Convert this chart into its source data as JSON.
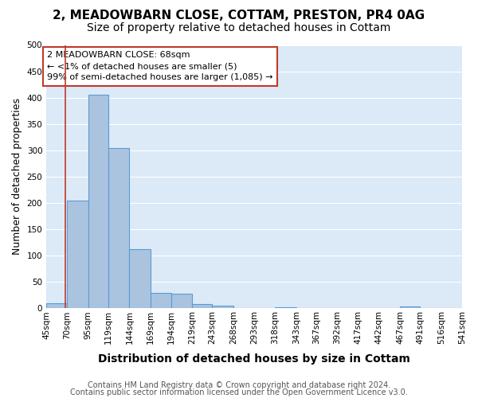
{
  "title_line1": "2, MEADOWBARN CLOSE, COTTAM, PRESTON, PR4 0AG",
  "title_line2": "Size of property relative to detached houses in Cottam",
  "xlabel": "Distribution of detached houses by size in Cottam",
  "ylabel": "Number of detached properties",
  "bar_edges": [
    45,
    70,
    95,
    119,
    144,
    169,
    194,
    219,
    243,
    268,
    293,
    318,
    343,
    367,
    392,
    417,
    442,
    467,
    491,
    516,
    541
  ],
  "bar_heights": [
    10,
    205,
    405,
    305,
    113,
    30,
    28,
    9,
    5,
    0,
    0,
    3,
    0,
    0,
    0,
    0,
    0,
    4,
    0,
    0
  ],
  "bar_color": "#aac4e0",
  "bar_edge_color": "#5b9bd5",
  "vline_x": 68,
  "vline_color": "#c0392b",
  "annotation_text": "2 MEADOWBARN CLOSE: 68sqm\n← <1% of detached houses are smaller (5)\n99% of semi-detached houses are larger (1,085) →",
  "annotation_box_color": "#ffffff",
  "annotation_box_edge_color": "#c0392b",
  "ylim": [
    0,
    500
  ],
  "yticks": [
    0,
    50,
    100,
    150,
    200,
    250,
    300,
    350,
    400,
    450,
    500
  ],
  "xtick_labels": [
    "45sqm",
    "70sqm",
    "95sqm",
    "119sqm",
    "144sqm",
    "169sqm",
    "194sqm",
    "219sqm",
    "243sqm",
    "268sqm",
    "293sqm",
    "318sqm",
    "343sqm",
    "367sqm",
    "392sqm",
    "417sqm",
    "442sqm",
    "467sqm",
    "491sqm",
    "516sqm",
    "541sqm"
  ],
  "bg_color": "#dce9f7",
  "footer_line1": "Contains HM Land Registry data © Crown copyright and database right 2024.",
  "footer_line2": "Contains public sector information licensed under the Open Government Licence v3.0.",
  "title_fontsize": 11,
  "subtitle_fontsize": 10,
  "axis_label_fontsize": 9,
  "tick_fontsize": 7.5,
  "annotation_fontsize": 8,
  "footer_fontsize": 7
}
